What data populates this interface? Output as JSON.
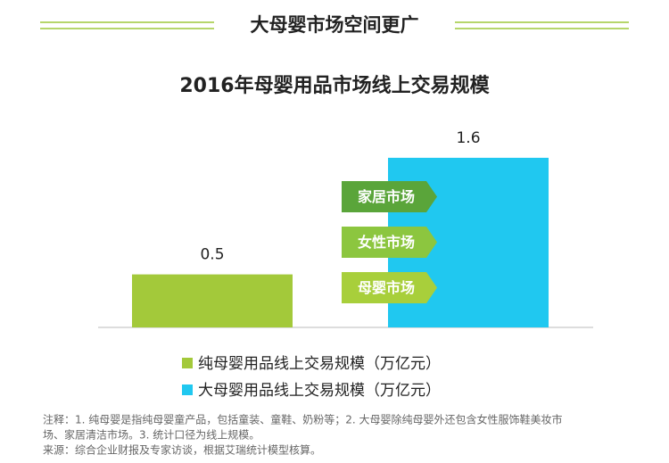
{
  "chart_data": {
    "type": "bar",
    "header": "大母婴市场空间更广",
    "title": "2016年母婴用品市场线上交易规模",
    "categories": [
      null,
      null
    ],
    "series": [
      {
        "name": "纯母婴用品线上交易规模（万亿元）",
        "color": "#a3c93a",
        "values": [
          0.5,
          null
        ]
      },
      {
        "name": "大母婴用品线上交易规模（万亿元）",
        "color": "#20c8f0",
        "values": [
          null,
          1.6
        ]
      }
    ],
    "ylim": [
      0,
      1.7
    ],
    "annotations": [
      "家居市场",
      "女性市场",
      "母婴市场"
    ],
    "notes": [
      "注释：1. 纯母婴是指纯母婴童产品，包括童装、童鞋、奶粉等；2. 大母婴除纯母婴外还包含女性服饰鞋美妆市",
      "场、家居清洁市场。3. 统计口径为线上规模。",
      "来源：综合企业财报及专家访谈，根据艾瑞统计模型核算。"
    ]
  }
}
